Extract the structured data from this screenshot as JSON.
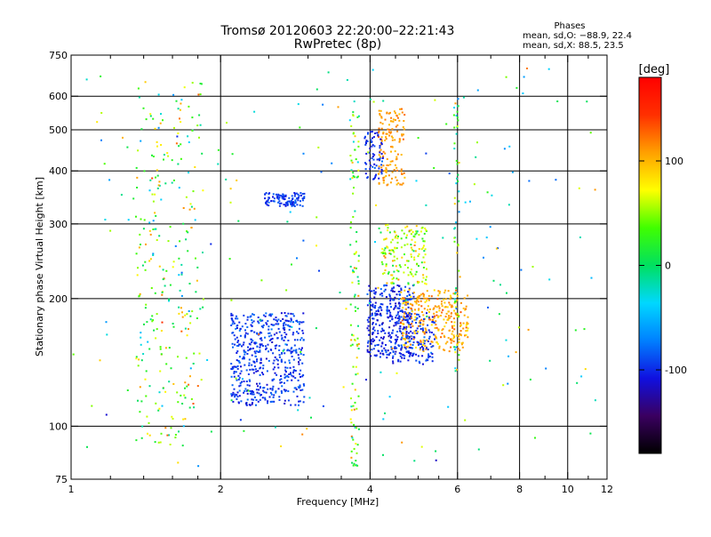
{
  "chart_data": {
    "type": "scatter",
    "title": "Tromsø 20120603 22:20:00–22:21:43",
    "subtitle": "RwPretec (8p)",
    "xlabel": "Frequency [MHz]",
    "ylabel": "Stationary phase Virtual Height [km]",
    "x_scale": "log",
    "y_scale": "log",
    "xlim": [
      1,
      12
    ],
    "ylim": [
      75,
      750
    ],
    "x_ticks": [
      1,
      2,
      4,
      6,
      8,
      10,
      12
    ],
    "x_tick_labels": [
      "1",
      "2",
      "4",
      "6",
      "8",
      "10",
      "12"
    ],
    "x_minor_ticks": [
      1.2,
      1.4,
      1.6,
      1.8,
      2.5,
      3,
      3.5,
      4.5,
      5,
      5.5,
      7,
      9,
      11
    ],
    "y_ticks": [
      75,
      100,
      200,
      300,
      400,
      500,
      600,
      750
    ],
    "y_tick_labels": [
      "75",
      "100",
      "200",
      "300",
      "400",
      "500",
      "600",
      "750"
    ],
    "grid": true,
    "gridlines_x": [
      2,
      4,
      6,
      8,
      10
    ],
    "gridlines_y": [
      100,
      200,
      300,
      400,
      500,
      600
    ],
    "colorbar": {
      "label": "[deg]",
      "range": [
        -180,
        180
      ],
      "ticks": [
        100,
        0,
        -100
      ],
      "tick_labels": [
        "100",
        "0",
        "-100"
      ],
      "colors": [
        "#000000",
        "#3a0060",
        "#1010e0",
        "#0080ff",
        "#00d8ff",
        "#00e060",
        "#40ff00",
        "#ffff00",
        "#ffa000",
        "#ff3000",
        "#ff0000"
      ]
    },
    "legend": {
      "heading": "Phases",
      "lines": [
        "mean, sd,O: −88.9, 22.4",
        "mean, sd,X:  88.5, 23.5"
      ]
    },
    "clusters": [
      {
        "x": [
          2.1,
          2.95
        ],
        "y": [
          112,
          185
        ],
        "phase": -95,
        "spread": 25,
        "count": 520
      },
      {
        "x": [
          2.45,
          2.95
        ],
        "y": [
          330,
          355
        ],
        "phase": -95,
        "spread": 20,
        "count": 110
      },
      {
        "x": [
          3.95,
          4.9
        ],
        "y": [
          145,
          215
        ],
        "phase": -100,
        "spread": 25,
        "count": 340
      },
      {
        "x": [
          4.6,
          6.3
        ],
        "y": [
          150,
          210
        ],
        "phase": 105,
        "spread": 35,
        "count": 300
      },
      {
        "x": [
          4.4,
          5.4
        ],
        "y": [
          140,
          185
        ],
        "phase": -95,
        "spread": 25,
        "count": 120
      },
      {
        "x": [
          4.15,
          4.7
        ],
        "y": [
          370,
          560
        ],
        "phase": 110,
        "spread": 20,
        "count": 140
      },
      {
        "x": [
          3.9,
          4.25
        ],
        "y": [
          380,
          500
        ],
        "phase": -100,
        "spread": 25,
        "count": 70
      },
      {
        "x": [
          4.2,
          5.2
        ],
        "y": [
          215,
          300
        ],
        "phase": 60,
        "spread": 70,
        "count": 160
      },
      {
        "x": [
          3.65,
          3.8
        ],
        "y": [
          80,
          560
        ],
        "phase": 40,
        "spread": 90,
        "count": 110
      },
      {
        "x": [
          5.9,
          6.05
        ],
        "y": [
          130,
          600
        ],
        "phase": 20,
        "spread": 100,
        "count": 60
      },
      {
        "x": [
          1.35,
          1.85
        ],
        "y": [
          90,
          660
        ],
        "phase": 40,
        "spread": 110,
        "count": 260
      },
      {
        "x": [
          1.0,
          12.0
        ],
        "y": [
          80,
          700
        ],
        "phase": 0,
        "spread": 130,
        "count": 220
      }
    ]
  }
}
